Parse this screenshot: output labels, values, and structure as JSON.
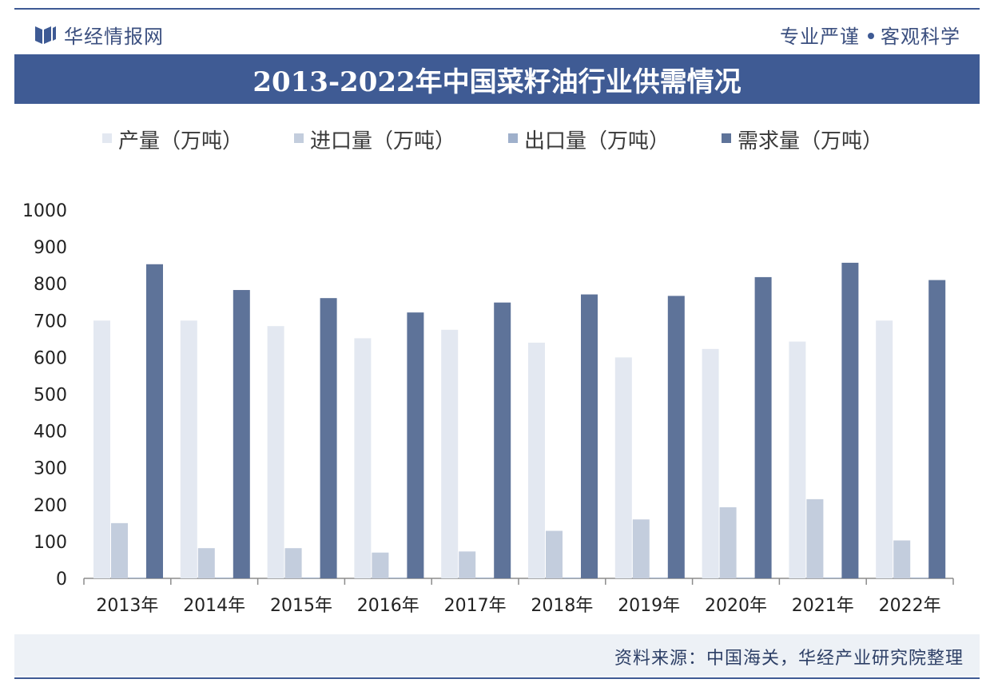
{
  "header": {
    "brand": "华经情报网",
    "slogan_left": "专业严谨",
    "slogan_right": "客观科学",
    "title": "2013-2022年中国菜籽油行业供需情况"
  },
  "footer": {
    "source": "资料来源：中国海关，华经产业研究院整理"
  },
  "colors": {
    "production": "#e3e8f1",
    "import": "#c3cddd",
    "export": "#9fb0cb",
    "demand": "#5e7399",
    "title_bg": "#3f5b94"
  },
  "chart_data": {
    "type": "bar",
    "title": "2013-2022年中国菜籽油行业供需情况",
    "categories": [
      "2013年",
      "2014年",
      "2015年",
      "2016年",
      "2017年",
      "2018年",
      "2019年",
      "2020年",
      "2021年",
      "2022年"
    ],
    "series": [
      {
        "name": "产量（万吨）",
        "values": [
          700,
          700,
          685,
          652,
          675,
          640,
          600,
          623,
          643,
          700
        ]
      },
      {
        "name": "进口量（万吨）",
        "values": [
          150,
          82,
          82,
          70,
          73,
          129,
          160,
          193,
          215,
          103
        ]
      },
      {
        "name": "出口量（万吨）",
        "values": [
          2,
          2,
          2,
          2,
          2,
          2,
          2,
          2,
          2,
          2
        ]
      },
      {
        "name": "需求量（万吨）",
        "values": [
          853,
          783,
          761,
          722,
          749,
          771,
          767,
          818,
          857,
          810
        ]
      }
    ],
    "yticks": [
      "0",
      "100",
      "200",
      "300",
      "400",
      "500",
      "600",
      "700",
      "800",
      "900",
      "1000"
    ],
    "ylim": [
      0,
      1000
    ],
    "xlabel": "",
    "ylabel": "",
    "legend": "top"
  }
}
